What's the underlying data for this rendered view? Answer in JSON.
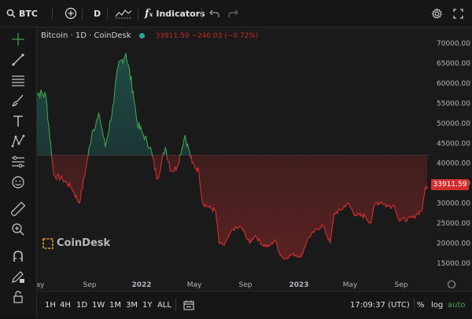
{
  "topbar": {
    "symbol": "BTC",
    "interval": "D",
    "indicators_label": "Indicators"
  },
  "legend": {
    "title": "Bitcoin · 1D · CoinDesk",
    "values": "33911.59 −246.03 (−0.72%)"
  },
  "watermark": {
    "brand": "CoinDesk"
  },
  "chart_data": {
    "type": "line",
    "title": "Bitcoin · 1D · CoinDesk",
    "baseline": 42000,
    "ylim": [
      12000,
      72000
    ],
    "y_ticks": [
      70000,
      65000,
      60000,
      55000,
      50000,
      45000,
      40000,
      35000,
      30000,
      25000,
      20000,
      15000
    ],
    "x_tick_labels": [
      "May",
      "Sep",
      "2022",
      "May",
      "Sep",
      "2023",
      "May",
      "Sep"
    ],
    "last_price": 33911.59,
    "colors": {
      "above": "#3fa34d",
      "below": "#d32f2f"
    },
    "series": [
      {
        "x": [
          "2021-04-01",
          "2021-05-01",
          "2021-05-20",
          "2021-06-10",
          "2021-07-01",
          "2021-07-20",
          "2021-08-05",
          "2021-08-20",
          "2021-09-06",
          "2021-09-20",
          "2021-10-10",
          "2021-10-20",
          "2021-11-08",
          "2021-11-25",
          "2021-12-05",
          "2021-12-20",
          "2022-01-05",
          "2022-01-22",
          "2022-02-10",
          "2022-02-24",
          "2022-03-10",
          "2022-03-29",
          "2022-04-15",
          "2022-05-01",
          "2022-05-10",
          "2022-05-25",
          "2022-06-10",
          "2022-06-18",
          "2022-07-01",
          "2022-07-20",
          "2022-08-10",
          "2022-08-30",
          "2022-09-12",
          "2022-09-30",
          "2022-10-15",
          "2022-10-30",
          "2022-11-09",
          "2022-11-21",
          "2022-12-10",
          "2022-12-31",
          "2023-01-15",
          "2023-02-01",
          "2023-02-20",
          "2023-03-10",
          "2023-03-20",
          "2023-04-05",
          "2023-04-20",
          "2023-05-10",
          "2023-06-01",
          "2023-06-15",
          "2023-06-25",
          "2023-07-10",
          "2023-07-25",
          "2023-08-10",
          "2023-08-20",
          "2023-09-10",
          "2023-09-25",
          "2023-10-05",
          "2023-10-16",
          "2023-10-23",
          "2023-10-27"
        ],
        "y": [
          58000,
          57000,
          37000,
          36000,
          34000,
          30000,
          39000,
          48000,
          52000,
          44000,
          55000,
          64000,
          67500,
          58000,
          50000,
          47000,
          44000,
          36000,
          44000,
          38000,
          39000,
          47000,
          40000,
          38000,
          30000,
          29000,
          28000,
          20000,
          19500,
          23500,
          24000,
          20000,
          22000,
          19500,
          19200,
          20800,
          17500,
          16000,
          17200,
          16600,
          21000,
          23000,
          24500,
          20000,
          27500,
          28300,
          30000,
          27000,
          26800,
          25000,
          30000,
          30300,
          29200,
          29500,
          26000,
          25900,
          26500,
          27500,
          28500,
          34000,
          33911.59
        ]
      }
    ]
  },
  "bottombar": {
    "timeframes": [
      "1H",
      "4H",
      "1D",
      "1W",
      "1M",
      "3M",
      "1Y",
      "ALL"
    ],
    "clock": "17:09:37 (UTC)",
    "percent": "%",
    "log": "log",
    "auto": "auto"
  }
}
